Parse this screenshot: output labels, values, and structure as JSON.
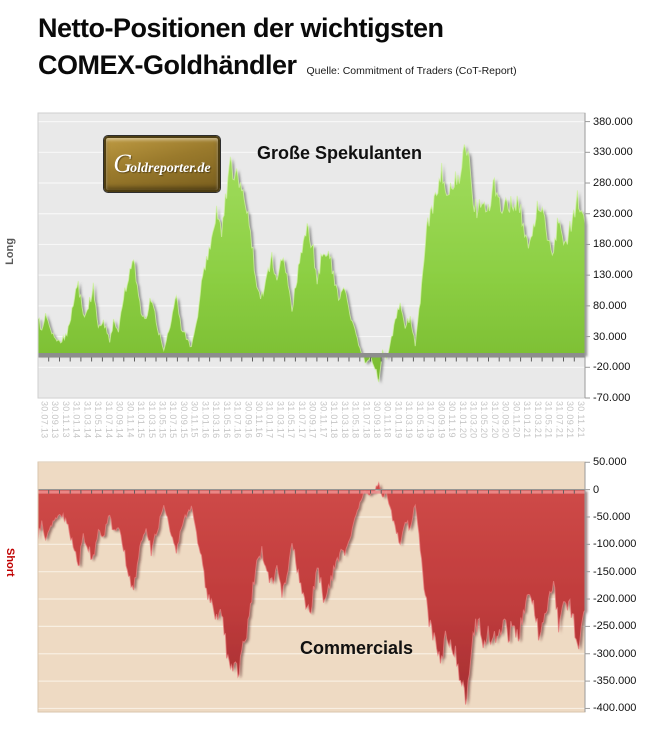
{
  "page": {
    "title_line1": "Netto-Positionen der wichtigsten",
    "title_line2": "COMEX-Goldhändler",
    "source": "Quelle: Commitment of Traders (CoT-Report)"
  },
  "logo": {
    "text_g": "G",
    "text_rest": "oldreporter.de"
  },
  "labels": {
    "speculators": "Große Spekulanten",
    "commercials": "Commercials",
    "long": "Long",
    "short": "Short"
  },
  "colors": {
    "speculators_green": "#8ccf43",
    "speculators_green_dark": "#79bb30",
    "speculators_highlight": "#d2f2a6",
    "commercials_red": "#c03c3c",
    "commercials_red_dark": "#a52f32",
    "commercials_highlight": "#ef9191",
    "long_label": "#595959",
    "short_label": "#c00000",
    "top_plot_bg": "#e9e9e9",
    "top_gridline": "#f7f7f7",
    "bottom_plot_bg": "#eedac3",
    "bottom_gridline": "#f8efe2",
    "x_label_gray": "#c6c6c6",
    "logo_gold": "#9a7a2c",
    "baseline_gray": "#8d8d8d"
  },
  "chart_data": {
    "type": "area",
    "title": "Netto-Positionen der wichtigsten COMEX-Goldhändler",
    "subtitle": "Quelle: Commitment of Traders (CoT-Report)",
    "frequency": "weekly",
    "x_start": "30.07.13",
    "x_end": "30.11.21",
    "n_weeks": 435,
    "x_tick_labels": [
      "30.07.13",
      "30.09.13",
      "30.11.13",
      "31.01.14",
      "31.03.14",
      "31.05.14",
      "31.07.14",
      "30.09.14",
      "30.11.14",
      "31.01.15",
      "31.03.15",
      "31.05.15",
      "31.07.15",
      "30.09.15",
      "30.11.15",
      "31.01.16",
      "31.03.16",
      "31.05.16",
      "31.07.16",
      "30.09.16",
      "30.11.16",
      "31.01.17",
      "31.03.17",
      "31.05.17",
      "31.07.17",
      "30.09.17",
      "30.11.17",
      "31.01.18",
      "31.03.18",
      "31.05.18",
      "31.07.18",
      "30.09.18",
      "30.11.18",
      "31.01.19",
      "31.03.19",
      "31.05.19",
      "31.07.19",
      "30.09.19",
      "30.11.19",
      "31.01.20",
      "31.03.20",
      "31.05.20",
      "31.07.20",
      "30.09.20",
      "30.11.20",
      "31.01.21",
      "31.03.21",
      "31.05.21",
      "31.07.21",
      "30.09.21",
      "30.11.21"
    ],
    "charts": [
      {
        "name": "Große Spekulanten (Long, Netto-Kontrakte)",
        "color": "#8ccf43",
        "axis_side": "right",
        "ylim_contracts": [
          -70000,
          394000
        ],
        "y_ticks": [
          {
            "label": "380.000",
            "value": 380
          },
          {
            "label": "330.000",
            "value": 330
          },
          {
            "label": "280.000",
            "value": 280
          },
          {
            "label": "230.000",
            "value": 230
          },
          {
            "label": "180.000",
            "value": 180
          },
          {
            "label": "130.000",
            "value": 130
          },
          {
            "label": "80.000",
            "value": 80
          },
          {
            "label": "30.000",
            "value": 30
          },
          {
            "label": "-20.000",
            "value": -20
          },
          {
            "label": "-70.000",
            "value": -70
          }
        ],
        "anchors_week_vs_thousand_contracts": [
          [
            0,
            62
          ],
          [
            3,
            38
          ],
          [
            6,
            68
          ],
          [
            10,
            42
          ],
          [
            14,
            28
          ],
          [
            18,
            22
          ],
          [
            23,
            35
          ],
          [
            28,
            80
          ],
          [
            32,
            118
          ],
          [
            36,
            62
          ],
          [
            40,
            82
          ],
          [
            44,
            108
          ],
          [
            48,
            48
          ],
          [
            52,
            60
          ],
          [
            57,
            22
          ],
          [
            60,
            55
          ],
          [
            64,
            42
          ],
          [
            68,
            90
          ],
          [
            74,
            148
          ],
          [
            76,
            158
          ],
          [
            82,
            70
          ],
          [
            86,
            55
          ],
          [
            90,
            92
          ],
          [
            95,
            48
          ],
          [
            100,
            8
          ],
          [
            104,
            40
          ],
          [
            110,
            95
          ],
          [
            114,
            45
          ],
          [
            118,
            28
          ],
          [
            122,
            12
          ],
          [
            126,
            55
          ],
          [
            130,
            110
          ],
          [
            134,
            160
          ],
          [
            138,
            185
          ],
          [
            142,
            225
          ],
          [
            146,
            200
          ],
          [
            150,
            270
          ],
          [
            153,
            315
          ],
          [
            156,
            290
          ],
          [
            159,
            305
          ],
          [
            162,
            270
          ],
          [
            166,
            240
          ],
          [
            170,
            180
          ],
          [
            174,
            110
          ],
          [
            178,
            95
          ],
          [
            182,
            130
          ],
          [
            186,
            155
          ],
          [
            190,
            120
          ],
          [
            194,
            165
          ],
          [
            198,
            135
          ],
          [
            202,
            75
          ],
          [
            208,
            150
          ],
          [
            214,
            205
          ],
          [
            218,
            185
          ],
          [
            222,
            120
          ],
          [
            227,
            175
          ],
          [
            232,
            160
          ],
          [
            236,
            120
          ],
          [
            240,
            95
          ],
          [
            244,
            105
          ],
          [
            248,
            70
          ],
          [
            252,
            40
          ],
          [
            256,
            10
          ],
          [
            260,
            -12
          ],
          [
            264,
            -5
          ],
          [
            268,
            -20
          ],
          [
            271,
            -42
          ],
          [
            274,
            5
          ],
          [
            277,
            -8
          ],
          [
            280,
            18
          ],
          [
            284,
            55
          ],
          [
            288,
            85
          ],
          [
            292,
            45
          ],
          [
            296,
            60
          ],
          [
            300,
            15
          ],
          [
            304,
            90
          ],
          [
            307,
            160
          ],
          [
            310,
            215
          ],
          [
            314,
            245
          ],
          [
            318,
            275
          ],
          [
            321,
            300
          ],
          [
            324,
            255
          ],
          [
            328,
            270
          ],
          [
            332,
            285
          ],
          [
            336,
            310
          ],
          [
            340,
            345
          ],
          [
            343,
            320
          ],
          [
            346,
            245
          ],
          [
            350,
            230
          ],
          [
            354,
            260
          ],
          [
            358,
            240
          ],
          [
            362,
            270
          ],
          [
            366,
            255
          ],
          [
            370,
            230
          ],
          [
            374,
            250
          ],
          [
            378,
            235
          ],
          [
            382,
            255
          ],
          [
            386,
            210
          ],
          [
            390,
            175
          ],
          [
            394,
            200
          ],
          [
            398,
            248
          ],
          [
            402,
            230
          ],
          [
            406,
            185
          ],
          [
            410,
            160
          ],
          [
            414,
            230
          ],
          [
            418,
            185
          ],
          [
            422,
            195
          ],
          [
            426,
            225
          ],
          [
            429,
            268
          ],
          [
            432,
            235
          ],
          [
            435,
            210
          ]
        ]
      },
      {
        "name": "Commercials (Short, Netto-Kontrakte)",
        "color": "#c03c3c",
        "axis_side": "right",
        "ylim_contracts": [
          -406500,
          50500
        ],
        "y_ticks": [
          {
            "label": "50.000",
            "value": 50
          },
          {
            "label": "0",
            "value": 0
          },
          {
            "label": "-50.000",
            "value": -50
          },
          {
            "label": "-100.000",
            "value": -100
          },
          {
            "label": "-150.000",
            "value": -150
          },
          {
            "label": "-200.000",
            "value": -200
          },
          {
            "label": "-250.000",
            "value": -250
          },
          {
            "label": "-300.000",
            "value": -300
          },
          {
            "label": "-350.000",
            "value": -350
          },
          {
            "label": "-400.000",
            "value": -400
          }
        ],
        "anchors_week_vs_thousand_contracts": [
          [
            0,
            -88
          ],
          [
            3,
            -60
          ],
          [
            6,
            -92
          ],
          [
            10,
            -66
          ],
          [
            14,
            -50
          ],
          [
            18,
            -44
          ],
          [
            23,
            -58
          ],
          [
            28,
            -105
          ],
          [
            32,
            -142
          ],
          [
            36,
            -85
          ],
          [
            40,
            -105
          ],
          [
            44,
            -130
          ],
          [
            48,
            -70
          ],
          [
            52,
            -82
          ],
          [
            57,
            -45
          ],
          [
            60,
            -78
          ],
          [
            64,
            -64
          ],
          [
            68,
            -113
          ],
          [
            74,
            -170
          ],
          [
            76,
            -180
          ],
          [
            82,
            -92
          ],
          [
            86,
            -76
          ],
          [
            90,
            -115
          ],
          [
            95,
            -70
          ],
          [
            100,
            -28
          ],
          [
            104,
            -62
          ],
          [
            110,
            -118
          ],
          [
            114,
            -66
          ],
          [
            118,
            -48
          ],
          [
            122,
            -32
          ],
          [
            126,
            -76
          ],
          [
            130,
            -132
          ],
          [
            134,
            -182
          ],
          [
            138,
            -207
          ],
          [
            142,
            -247
          ],
          [
            146,
            -222
          ],
          [
            150,
            -292
          ],
          [
            153,
            -335
          ],
          [
            156,
            -312
          ],
          [
            159,
            -327
          ],
          [
            162,
            -292
          ],
          [
            166,
            -262
          ],
          [
            170,
            -200
          ],
          [
            174,
            -130
          ],
          [
            178,
            -113
          ],
          [
            182,
            -150
          ],
          [
            186,
            -175
          ],
          [
            190,
            -140
          ],
          [
            194,
            -185
          ],
          [
            198,
            -155
          ],
          [
            202,
            -93
          ],
          [
            208,
            -170
          ],
          [
            214,
            -225
          ],
          [
            218,
            -205
          ],
          [
            222,
            -138
          ],
          [
            227,
            -195
          ],
          [
            232,
            -178
          ],
          [
            236,
            -138
          ],
          [
            240,
            -112
          ],
          [
            244,
            -122
          ],
          [
            248,
            -86
          ],
          [
            252,
            -55
          ],
          [
            256,
            -25
          ],
          [
            260,
            -2
          ],
          [
            264,
            -10
          ],
          [
            268,
            -1
          ],
          [
            271,
            14
          ],
          [
            274,
            -18
          ],
          [
            277,
            -5
          ],
          [
            280,
            -32
          ],
          [
            284,
            -70
          ],
          [
            288,
            -100
          ],
          [
            292,
            -58
          ],
          [
            296,
            -73
          ],
          [
            300,
            -28
          ],
          [
            304,
            -105
          ],
          [
            307,
            -175
          ],
          [
            310,
            -230
          ],
          [
            314,
            -260
          ],
          [
            318,
            -290
          ],
          [
            321,
            -318
          ],
          [
            324,
            -270
          ],
          [
            328,
            -285
          ],
          [
            332,
            -300
          ],
          [
            336,
            -330
          ],
          [
            340,
            -383
          ],
          [
            343,
            -340
          ],
          [
            346,
            -262
          ],
          [
            350,
            -245
          ],
          [
            354,
            -275
          ],
          [
            358,
            -255
          ],
          [
            362,
            -285
          ],
          [
            366,
            -270
          ],
          [
            370,
            -245
          ],
          [
            374,
            -265
          ],
          [
            378,
            -250
          ],
          [
            382,
            -270
          ],
          [
            386,
            -225
          ],
          [
            390,
            -190
          ],
          [
            394,
            -215
          ],
          [
            398,
            -263
          ],
          [
            402,
            -245
          ],
          [
            406,
            -200
          ],
          [
            410,
            -175
          ],
          [
            414,
            -245
          ],
          [
            418,
            -200
          ],
          [
            422,
            -210
          ],
          [
            426,
            -240
          ],
          [
            429,
            -283
          ],
          [
            432,
            -250
          ],
          [
            435,
            -225
          ]
        ]
      }
    ]
  }
}
